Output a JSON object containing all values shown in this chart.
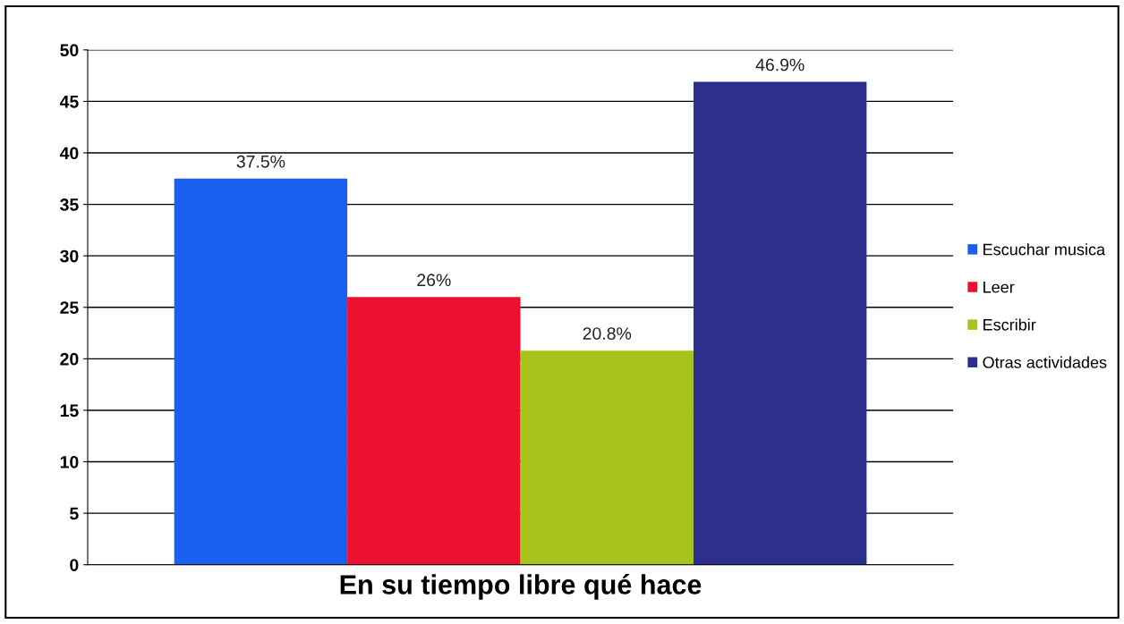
{
  "chart_data": {
    "type": "bar",
    "xlabel": "En su tiempo libre qué hace",
    "categories": [
      null
    ],
    "series": [
      {
        "name": "Escuchar musica",
        "color": "#1a5ff0",
        "values": [
          37.5
        ],
        "value_labels": [
          "37.5%"
        ]
      },
      {
        "name": "Leer",
        "color": "#ee1030",
        "values": [
          26
        ],
        "value_labels": [
          "26%"
        ]
      },
      {
        "name": "Escribir",
        "color": "#a6c41c",
        "values": [
          20.8
        ],
        "value_labels": [
          "20.8%"
        ]
      },
      {
        "name": "Otras actividades",
        "color": "#2c2f8c",
        "values": [
          46.9
        ],
        "value_labels": [
          "46.9%"
        ]
      }
    ],
    "ylim": [
      0,
      50
    ],
    "yticks": [
      0,
      5,
      10,
      15,
      20,
      25,
      30,
      35,
      40,
      45,
      50
    ],
    "grid": "y",
    "legend": "right"
  }
}
